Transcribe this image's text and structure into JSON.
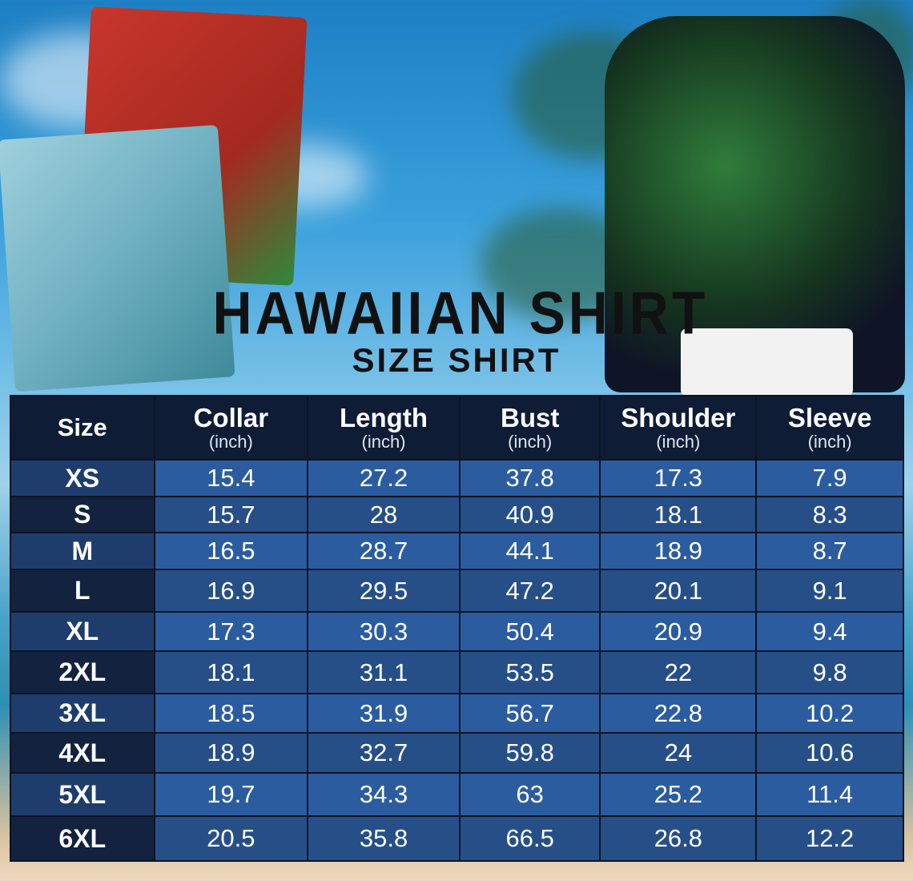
{
  "title": "HAWAIIAN SHIRT",
  "subtitle": "SIZE SHIRT",
  "table": {
    "headers": [
      {
        "label": "Size",
        "unit": ""
      },
      {
        "label": "Collar",
        "unit": "(inch)"
      },
      {
        "label": "Length",
        "unit": "(inch)"
      },
      {
        "label": "Bust",
        "unit": "(inch)"
      },
      {
        "label": "Shoulder",
        "unit": "(inch)"
      },
      {
        "label": "Sleeve",
        "unit": "(inch)"
      }
    ],
    "rows": [
      [
        "XS",
        "15.4",
        "27.2",
        "37.8",
        "17.3",
        "7.9"
      ],
      [
        "S",
        "15.7",
        "28",
        "40.9",
        "18.1",
        "8.3"
      ],
      [
        "M",
        "16.5",
        "28.7",
        "44.1",
        "18.9",
        "8.7"
      ],
      [
        "L",
        "16.9",
        "29.5",
        "47.2",
        "20.1",
        "9.1"
      ],
      [
        "XL",
        "17.3",
        "30.3",
        "50.4",
        "20.9",
        "9.4"
      ],
      [
        "2XL",
        "18.1",
        "31.1",
        "53.5",
        "22",
        "9.8"
      ],
      [
        "3XL",
        "18.5",
        "31.9",
        "56.7",
        "22.8",
        "10.2"
      ],
      [
        "4XL",
        "18.9",
        "32.7",
        "59.8",
        "24",
        "10.6"
      ],
      [
        "5XL",
        "19.7",
        "34.3",
        "63",
        "25.2",
        "11.4"
      ],
      [
        "6XL",
        "20.5",
        "35.8",
        "66.5",
        "26.8",
        "12.2"
      ]
    ]
  },
  "colors": {
    "header": "#0f1c36",
    "row_light": "#2b5c9f",
    "row_dark": "#264f88"
  }
}
